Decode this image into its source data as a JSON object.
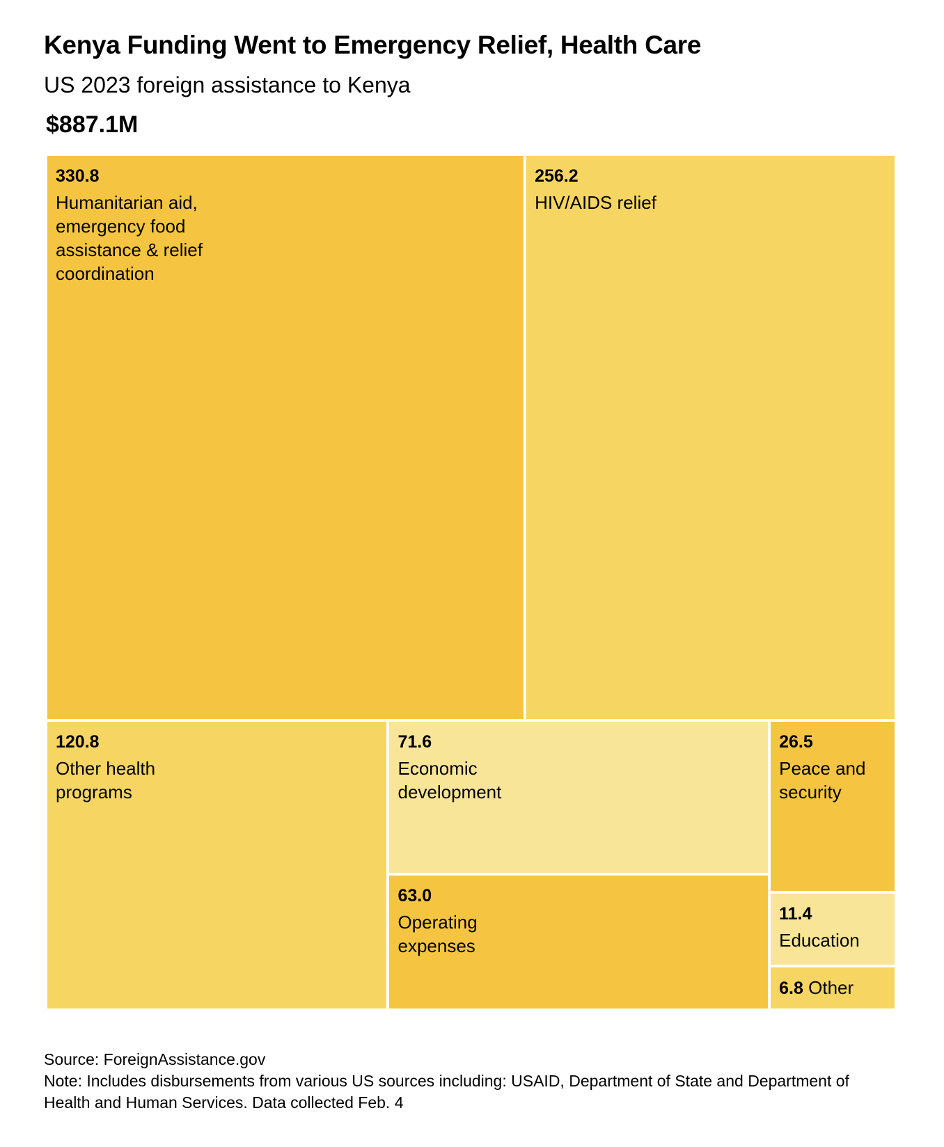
{
  "title": "Kenya Funding Went to Emergency Relief, Health Care",
  "subtitle": "US 2023 foreign assistance to Kenya",
  "total": "$887.1M",
  "colors": {
    "dark": "#F5C542",
    "medium": "#F7D562",
    "light": "#F9E597",
    "border": "#FFFFFF"
  },
  "chart_data": {
    "type": "treemap",
    "title": "Kenya Funding Went to Emergency Relief, Health Care",
    "subtitle": "US 2023 foreign assistance to Kenya",
    "total_label": "$887.1M",
    "items": [
      {
        "label": "Humanitarian aid, emergency food assistance & relief coordination",
        "value": 330.8,
        "value_label": "330.8",
        "color": "#F5C542"
      },
      {
        "label": "HIV/AIDS relief",
        "value": 256.2,
        "value_label": "256.2",
        "color": "#F7D562"
      },
      {
        "label": "Other health programs",
        "value": 120.8,
        "value_label": "120.8",
        "color": "#F7D562"
      },
      {
        "label": "Economic development",
        "value": 71.6,
        "value_label": "71.6",
        "color": "#F9E597"
      },
      {
        "label": "Operating expenses",
        "value": 63.0,
        "value_label": "63.0",
        "color": "#F5C542"
      },
      {
        "label": "Peace and security",
        "value": 26.5,
        "value_label": "26.5",
        "color": "#F5C542"
      },
      {
        "label": "Education",
        "value": 11.4,
        "value_label": "11.4",
        "color": "#F9E597"
      },
      {
        "label": "Other",
        "value": 6.8,
        "value_label": "6.8",
        "color": "#F7D562"
      }
    ]
  },
  "footer": {
    "source": "Source: ForeignAssistance.gov",
    "note": "Note: Includes disbursements from various US sources including: USAID, Department of State and Department of Health and Human Services. Data collected Feb. 4"
  }
}
